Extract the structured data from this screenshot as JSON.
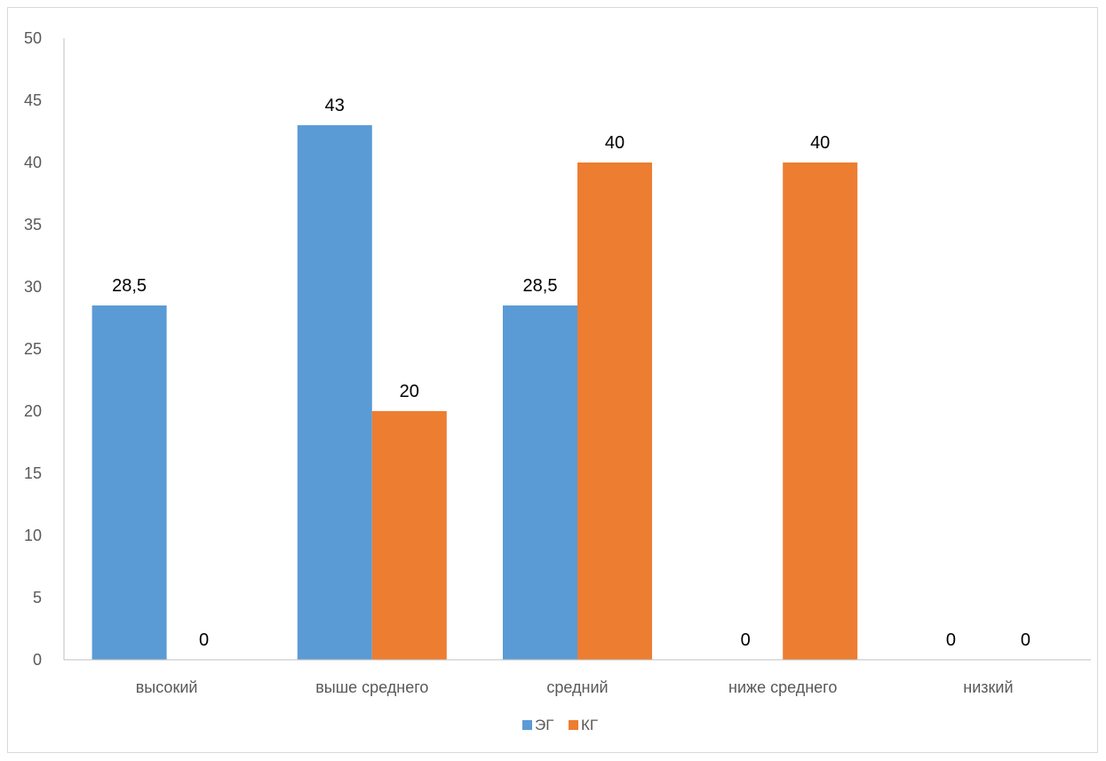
{
  "chart_data": {
    "type": "bar",
    "categories": [
      "высокий",
      "выше среднего",
      "средний",
      "ниже среднего",
      "низкий"
    ],
    "series": [
      {
        "name": "ЭГ",
        "color": "#5B9BD5",
        "values": [
          28.5,
          43,
          28.5,
          0,
          0
        ],
        "labels": [
          "28,5",
          "43",
          "28,5",
          "0",
          "0"
        ]
      },
      {
        "name": "КГ",
        "color": "#ED7D31",
        "values": [
          0,
          20,
          40,
          40,
          0
        ],
        "labels": [
          "0",
          "20",
          "40",
          "40",
          "0"
        ]
      }
    ],
    "ylim": [
      0,
      50
    ],
    "yticks": [
      "0",
      "5",
      "10",
      "15",
      "20",
      "25",
      "30",
      "35",
      "40",
      "45",
      "50"
    ],
    "grid": false,
    "legend": "bottom"
  }
}
